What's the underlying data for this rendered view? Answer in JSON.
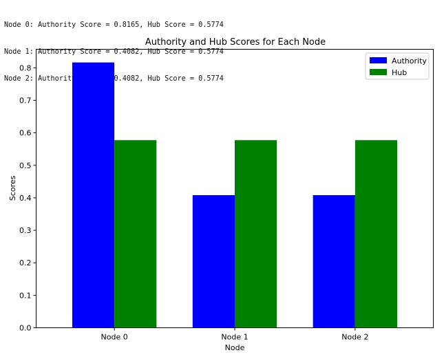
{
  "console_output": [
    "Node 0: Authority Score = 0.8165, Hub Score = 0.5774",
    "Node 1: Authority Score = 0.4082, Hub Score = 0.5774",
    "Node 2: Authority Score = 0.4082, Hub Score = 0.5774"
  ],
  "chart_data": {
    "type": "bar",
    "title": "Authority and Hub Scores for Each Node",
    "xlabel": "Node",
    "ylabel": "Scores",
    "categories": [
      "Node 0",
      "Node 1",
      "Node 2"
    ],
    "series": [
      {
        "name": "Authority",
        "values": [
          0.8165,
          0.4082,
          0.4082
        ],
        "color": "#0000ff"
      },
      {
        "name": "Hub",
        "values": [
          0.5774,
          0.5774,
          0.5774
        ],
        "color": "#008000"
      }
    ],
    "ylim": [
      0,
      0.857
    ],
    "yticks": [
      "0.0",
      "0.1",
      "0.2",
      "0.3",
      "0.4",
      "0.5",
      "0.6",
      "0.7",
      "0.8"
    ],
    "grid": false,
    "legend": "top-right"
  }
}
